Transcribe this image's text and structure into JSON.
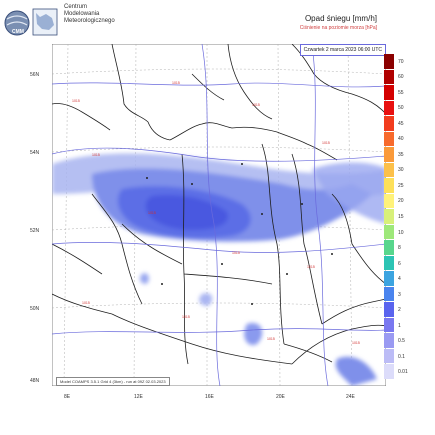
{
  "header": {
    "org_lines": [
      "Centrum",
      "Modelowania",
      "Meteorologicznego"
    ],
    "title": "Opad śniegu [mm/h]",
    "subtitle": "Ciśnienie na poziomie morza [hPa]"
  },
  "map": {
    "timestamp": "Czwartek 2 marca 2023 06:00 UTC",
    "footer": "Model COAMPS 3.5.1 Grid 4 (3km) - run at 09Z 02.03.2023",
    "lat_labels": [
      "56N",
      "54N",
      "52N",
      "50N",
      "48N"
    ],
    "lon_labels": [
      "8E",
      "12E",
      "16E",
      "20E",
      "24E"
    ],
    "pressure_label": "1015"
  },
  "legend": {
    "values": [
      "70",
      "60",
      "55",
      "50",
      "45",
      "40",
      "35",
      "30",
      "25",
      "20",
      "15",
      "10",
      "8",
      "6",
      "4",
      "3",
      "2",
      "1",
      "0.5",
      "0.1",
      "0.01"
    ],
    "colors": [
      "#8b0000",
      "#b00000",
      "#d40000",
      "#e81010",
      "#f23c1e",
      "#f76a2c",
      "#fa9a3a",
      "#fcc04a",
      "#fde05a",
      "#fff27a",
      "#d8f07a",
      "#9ee87a",
      "#58d68c",
      "#2cc4b4",
      "#3ca4e0",
      "#4a84ee",
      "#5a64ee",
      "#7a78f0",
      "#9a9af2",
      "#bcbcf6",
      "#dcdcfa"
    ]
  }
}
